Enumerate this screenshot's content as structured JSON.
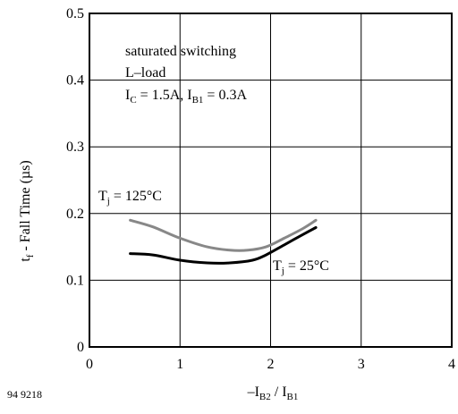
{
  "figure_code": "94 9218",
  "chart_data": {
    "type": "line",
    "x_label": {
      "main": "–I",
      "sub1": "B2",
      "mid": " / I",
      "sub2": "B1"
    },
    "y_label": {
      "prefix": "t",
      "sub": "f",
      "rest": " - Fall Time  (µs)"
    },
    "x_ticks": [
      "0",
      "1",
      "2",
      "3",
      "4"
    ],
    "y_ticks": [
      "0",
      "0.1",
      "0.2",
      "0.3",
      "0.4",
      "0.5"
    ],
    "xlim": [
      0,
      4
    ],
    "ylim": [
      0,
      0.5
    ],
    "grid": true,
    "annotations": {
      "line1": "saturated switching",
      "line2": "L–load",
      "line3": {
        "a": "I",
        "a_sub": "C",
        "b": " = 1.5A, I",
        "b_sub": "B1",
        "c": " = 0.3A"
      }
    },
    "series": [
      {
        "label": {
          "t": "T",
          "sub": "j",
          "rest": " = 125°C"
        },
        "color": "#888888",
        "x": [
          0.45,
          0.7,
          1.0,
          1.3,
          1.55,
          1.75,
          1.95,
          2.15,
          2.35,
          2.5
        ],
        "y": [
          0.19,
          0.18,
          0.163,
          0.15,
          0.145,
          0.145,
          0.15,
          0.163,
          0.177,
          0.19
        ]
      },
      {
        "label": {
          "t": "T",
          "sub": "j",
          "rest": " = 25°C"
        },
        "color": "#000000",
        "x": [
          0.45,
          0.7,
          1.0,
          1.3,
          1.55,
          1.8,
          1.95,
          2.15,
          2.35,
          2.5
        ],
        "y": [
          0.14,
          0.138,
          0.13,
          0.126,
          0.126,
          0.13,
          0.138,
          0.153,
          0.168,
          0.179
        ]
      }
    ]
  }
}
